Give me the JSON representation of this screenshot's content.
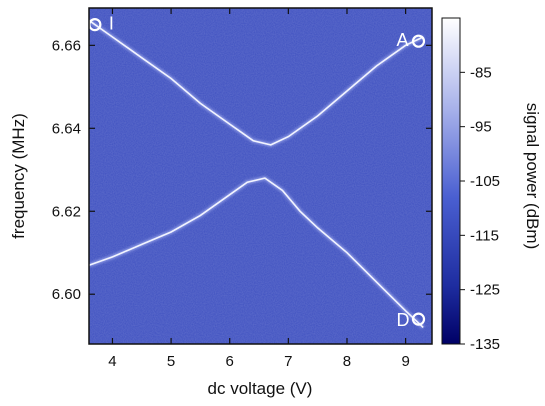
{
  "chart_data": {
    "type": "heatmap",
    "xlabel": "dc voltage (V)",
    "ylabel": "frequency (MHz)",
    "colorbar_label": "signal power (dBm)",
    "xlim": [
      3.6,
      9.45
    ],
    "ylim": [
      6.588,
      6.669
    ],
    "x_ticks": [
      4,
      5,
      6,
      7,
      8,
      9
    ],
    "y_ticks": [
      6.6,
      6.62,
      6.64,
      6.66
    ],
    "x_tick_labels": [
      "4",
      "5",
      "6",
      "7",
      "8",
      "9"
    ],
    "y_tick_labels": [
      "6.60",
      "6.62",
      "6.64",
      "6.66"
    ],
    "colorbar_range": [
      -135,
      -75
    ],
    "colorbar_ticks": [
      -85,
      -95,
      -105,
      -115,
      -125,
      -135
    ],
    "colorbar_tick_labels": [
      "-85",
      "-95",
      "-105",
      "-115",
      "-125",
      "-135"
    ],
    "colors": {
      "background": "#3d4fc0",
      "low": "#000066",
      "mid": "#4a5fd1",
      "high": "#ffffff"
    },
    "upper_branch": {
      "x": [
        3.6,
        4.0,
        4.5,
        5.0,
        5.5,
        6.0,
        6.4,
        6.7,
        7.0,
        7.5,
        8.0,
        8.5,
        9.0,
        9.3
      ],
      "y": [
        6.666,
        6.662,
        6.657,
        6.652,
        6.646,
        6.641,
        6.637,
        6.636,
        6.638,
        6.643,
        6.649,
        6.655,
        6.66,
        6.662
      ]
    },
    "lower_branch": {
      "x": [
        3.6,
        4.0,
        4.5,
        5.0,
        5.5,
        6.0,
        6.3,
        6.6,
        6.9,
        7.2,
        7.5,
        8.0,
        8.5,
        9.0,
        9.3
      ],
      "y": [
        6.607,
        6.609,
        6.612,
        6.615,
        6.619,
        6.624,
        6.627,
        6.628,
        6.625,
        6.62,
        6.616,
        6.61,
        6.603,
        6.596,
        6.592
      ]
    },
    "markers": [
      {
        "label": "I",
        "x": 3.7,
        "y": 6.665
      },
      {
        "label": "A",
        "x": 9.22,
        "y": 6.661
      },
      {
        "label": "D",
        "x": 9.22,
        "y": 6.594
      }
    ]
  }
}
